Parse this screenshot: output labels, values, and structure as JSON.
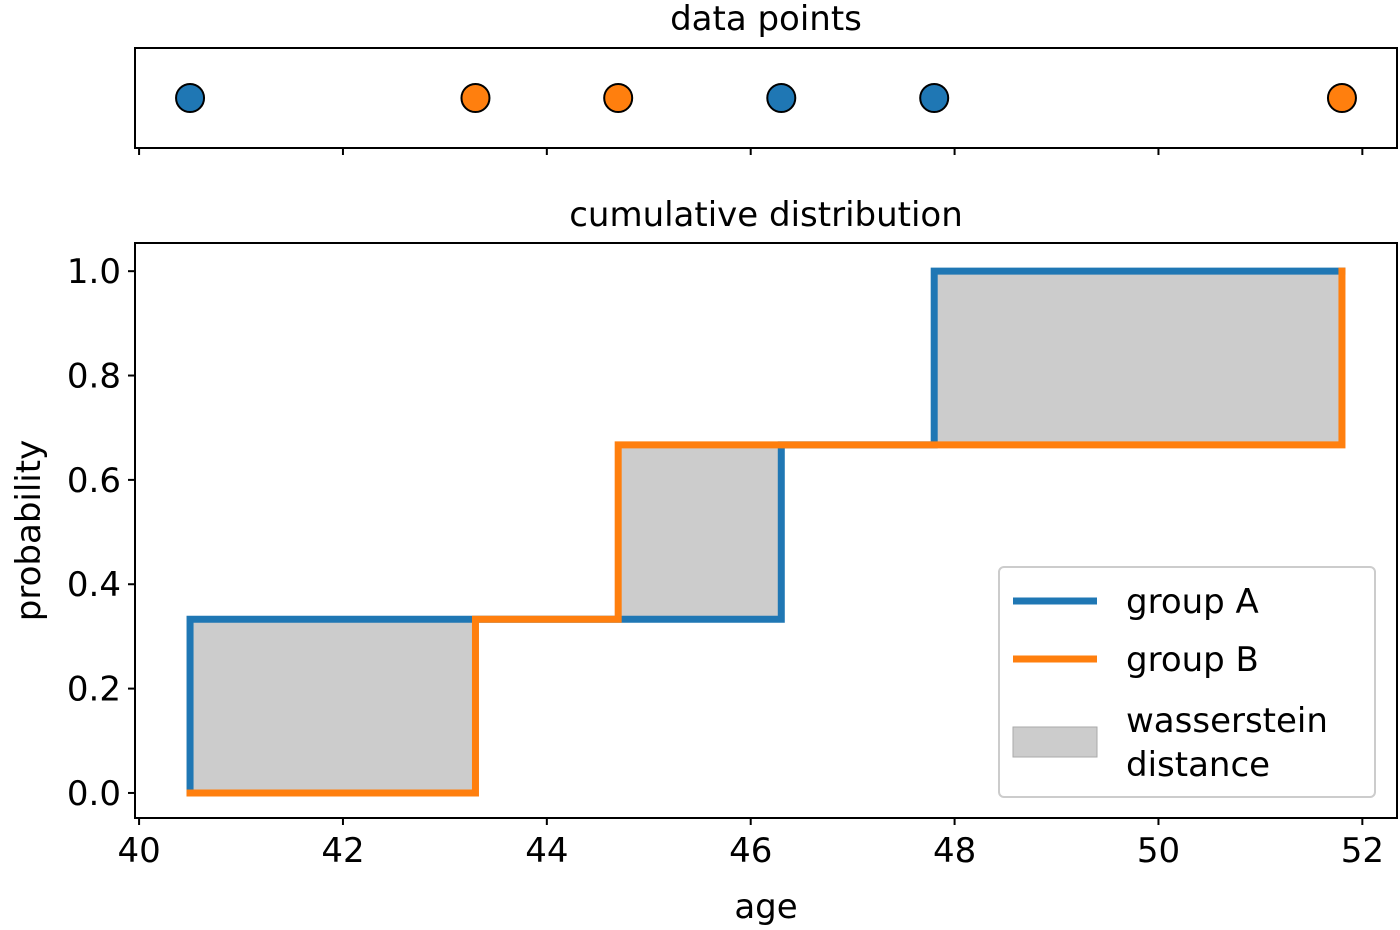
{
  "chart_data": [
    {
      "type": "strip",
      "title": "data points",
      "xlim": [
        39.96,
        52.34
      ],
      "xticks": [
        40,
        42,
        44,
        46,
        48,
        50,
        52
      ],
      "series": [
        {
          "color": "#1f77b4",
          "x": [
            40.5,
            46.3,
            47.8
          ]
        },
        {
          "color": "#ff7f0e",
          "x": [
            43.3,
            44.7,
            51.8
          ]
        }
      ]
    },
    {
      "type": "line",
      "title": "cumulative distribution",
      "x_label": "age",
      "y_label": "probability",
      "xlim": [
        39.96,
        52.34
      ],
      "xticks": [
        40,
        42,
        44,
        46,
        48,
        50,
        52
      ],
      "ylim": [
        -0.048,
        1.054
      ],
      "yticks": [
        {
          "value": 0,
          "label": "0.0"
        },
        0.2,
        0.4,
        0.6,
        0.8,
        {
          "value": 1,
          "label": "1.0"
        }
      ],
      "legend": "lower right",
      "series": [
        {
          "name": "group A",
          "color": "#1f77b4",
          "x": [
            40.5,
            40.5,
            46.3,
            46.3,
            47.8,
            47.8,
            51.8
          ],
          "values": [
            0,
            0.333,
            0.333,
            0.667,
            0.667,
            1,
            1
          ]
        },
        {
          "name": "group B",
          "color": "#ff7f0e",
          "x": [
            40.5,
            43.3,
            43.3,
            44.7,
            44.7,
            51.8,
            51.8
          ],
          "values": [
            0,
            0,
            0.333,
            0.333,
            0.667,
            0.667,
            1
          ]
        }
      ],
      "fill": {
        "name": "wasserstein distance",
        "color": "#cccccc"
      }
    }
  ]
}
